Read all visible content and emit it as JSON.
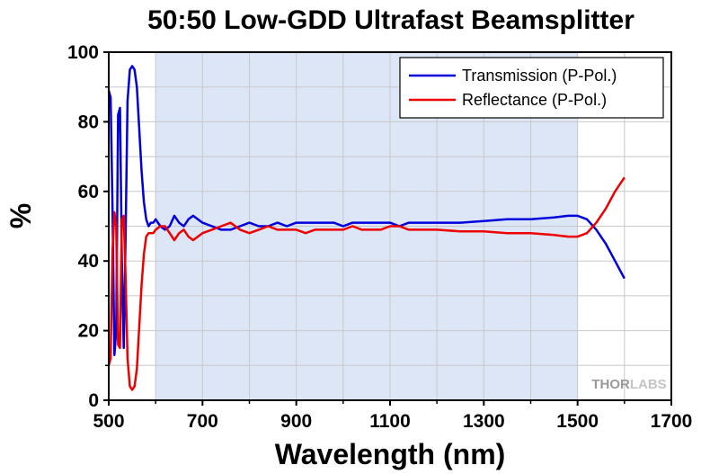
{
  "chart_data": {
    "type": "line",
    "title": "50:50 Low-GDD Ultrafast Beamsplitter",
    "xlabel": "Wavelength (nm)",
    "ylabel": "%",
    "xlim": [
      500,
      1700
    ],
    "ylim": [
      0,
      100
    ],
    "xticks": [
      500,
      700,
      900,
      1100,
      1300,
      1500,
      1700
    ],
    "yticks": [
      0,
      20,
      40,
      60,
      80,
      100
    ],
    "shaded_region": [
      600,
      1500
    ],
    "shaded_color": "#dde6f7",
    "grid": true,
    "legend_position": "top-right",
    "series": [
      {
        "name": "Transmission (P-Pol.)",
        "color": "#0000dd",
        "x": [
          500,
          504,
          508,
          512,
          516,
          520,
          524,
          528,
          532,
          536,
          540,
          545,
          550,
          555,
          560,
          565,
          570,
          575,
          580,
          585,
          590,
          595,
          600,
          610,
          620,
          630,
          640,
          650,
          660,
          670,
          680,
          690,
          700,
          720,
          740,
          760,
          780,
          800,
          820,
          840,
          860,
          880,
          900,
          920,
          940,
          960,
          980,
          1000,
          1020,
          1040,
          1060,
          1080,
          1100,
          1120,
          1140,
          1160,
          1180,
          1200,
          1250,
          1300,
          1350,
          1400,
          1450,
          1480,
          1500,
          1520,
          1540,
          1560,
          1580,
          1600
        ],
        "y": [
          89,
          87,
          55,
          13,
          20,
          82,
          84,
          40,
          15,
          48,
          86,
          95,
          96,
          95,
          90,
          78,
          66,
          57,
          52,
          50,
          51,
          51,
          52,
          50,
          49,
          50,
          53,
          51,
          50,
          52,
          53,
          52,
          51,
          50,
          49,
          49,
          50,
          51,
          50,
          50,
          51,
          50,
          51,
          51,
          51,
          51,
          51,
          50,
          51,
          51,
          51,
          51,
          51,
          50,
          51,
          51,
          51,
          51,
          51,
          51.5,
          52,
          52,
          52.5,
          53,
          53,
          52,
          49,
          45,
          40,
          35
        ]
      },
      {
        "name": "Reflectance (P-Pol.)",
        "color": "#ee0000",
        "x": [
          500,
          504,
          508,
          512,
          516,
          520,
          524,
          528,
          532,
          536,
          540,
          545,
          550,
          555,
          560,
          565,
          570,
          575,
          580,
          585,
          590,
          595,
          600,
          610,
          620,
          630,
          640,
          650,
          660,
          670,
          680,
          690,
          700,
          720,
          740,
          760,
          780,
          800,
          820,
          840,
          860,
          880,
          900,
          920,
          940,
          960,
          980,
          1000,
          1020,
          1040,
          1060,
          1080,
          1100,
          1120,
          1140,
          1160,
          1180,
          1200,
          1250,
          1300,
          1350,
          1400,
          1450,
          1480,
          1500,
          1520,
          1540,
          1560,
          1580,
          1600
        ],
        "y": [
          10,
          12,
          43,
          54,
          50,
          16,
          15,
          52,
          53,
          35,
          12,
          4,
          3,
          4,
          9,
          21,
          33,
          42,
          47,
          48,
          48,
          48,
          49,
          50,
          50,
          48,
          46,
          48,
          49,
          47,
          46,
          47,
          48,
          49,
          50,
          51,
          49,
          48,
          49,
          50,
          49,
          49,
          49,
          48,
          49,
          49,
          49,
          49,
          50,
          49,
          49,
          49,
          50,
          50,
          49,
          49,
          49,
          49,
          48.5,
          48.5,
          48,
          48,
          47.5,
          47,
          47,
          48,
          51,
          55,
          60,
          64
        ]
      }
    ]
  },
  "watermark": {
    "part1": "THOR",
    "part2": "LABS"
  }
}
